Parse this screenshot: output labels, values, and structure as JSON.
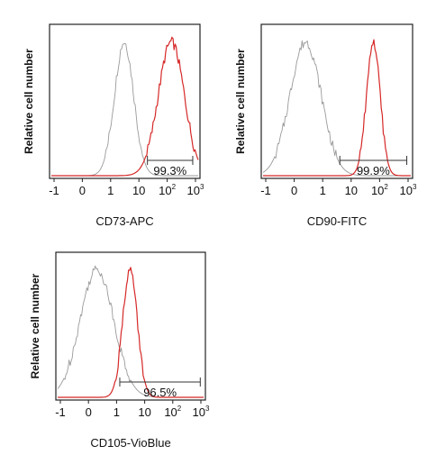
{
  "chart_data": [
    {
      "type": "histogram",
      "id": "cd73",
      "xlabel": "CD73-APC",
      "ylabel": "Relative cell number",
      "x_scale": "biexponential",
      "x_ticks": [
        {
          "value": -1,
          "label": "-1"
        },
        {
          "value": 0,
          "label": "0"
        },
        {
          "value": 1,
          "label": "1"
        },
        {
          "value": 10,
          "label": "10"
        },
        {
          "value": 100,
          "label": "10",
          "sup": "2"
        },
        {
          "value": 1000,
          "label": "10",
          "sup": "3"
        }
      ],
      "series": [
        {
          "role": "control",
          "color": "#9a9a9a",
          "peak_x": 3,
          "width": 0.34,
          "spike_x": 2.6
        },
        {
          "role": "stained",
          "color": "#d62828",
          "peak_x": 140,
          "width": 0.46
        }
      ],
      "gate": {
        "from": 20,
        "to": 800,
        "label": "99.3%"
      }
    },
    {
      "type": "histogram",
      "id": "cd90",
      "xlabel": "CD90-FITC",
      "ylabel": "Relative cell number",
      "x_scale": "biexponential",
      "x_ticks": [
        {
          "value": -1,
          "label": "-1"
        },
        {
          "value": 0,
          "label": "0"
        },
        {
          "value": 1,
          "label": "1"
        },
        {
          "value": 10,
          "label": "10"
        },
        {
          "value": 100,
          "label": "10",
          "sup": "2"
        },
        {
          "value": 1000,
          "label": "10",
          "sup": "3"
        }
      ],
      "series": [
        {
          "role": "control",
          "color": "#9a9a9a",
          "peak_x": 0.4,
          "width": 0.55,
          "spike_x": 0.3
        },
        {
          "role": "stained",
          "color": "#d62828",
          "peak_x": 60,
          "width": 0.24
        }
      ],
      "gate": {
        "from": 4,
        "to": 900,
        "label": "99.9%"
      }
    },
    {
      "type": "histogram",
      "id": "cd105",
      "xlabel": "CD105-VioBlue",
      "ylabel": "Relative cell number",
      "x_scale": "biexponential",
      "x_ticks": [
        {
          "value": -1,
          "label": "-1"
        },
        {
          "value": 0,
          "label": "0"
        },
        {
          "value": 1,
          "label": "1"
        },
        {
          "value": 10,
          "label": "10"
        },
        {
          "value": 100,
          "label": "10",
          "sup": "2"
        },
        {
          "value": 1000,
          "label": "10",
          "sup": "3"
        }
      ],
      "series": [
        {
          "role": "control",
          "color": "#9a9a9a",
          "peak_x": 0.3,
          "width": 0.6,
          "spike_x": 0.2
        },
        {
          "role": "stained",
          "color": "#d62828",
          "peak_x": 3,
          "width": 0.26
        }
      ],
      "gate": {
        "from": 1.3,
        "to": 950,
        "label": "96.5%"
      }
    }
  ]
}
